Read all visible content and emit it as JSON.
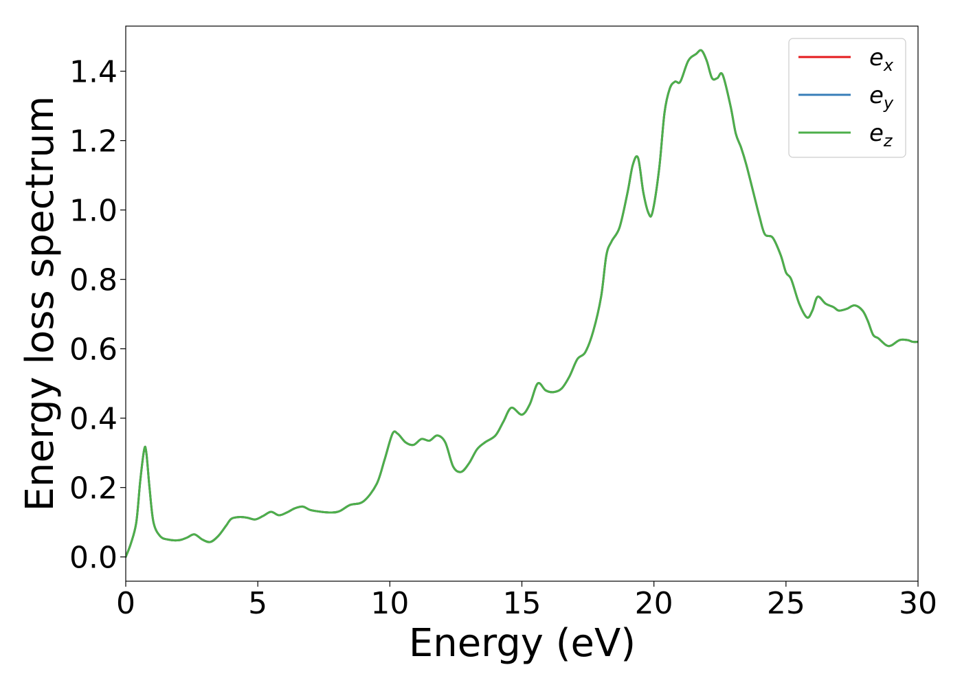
{
  "chart_data": {
    "type": "line",
    "xlabel": "Energy (eV)",
    "ylabel": "Energy loss spectrum",
    "xlim": [
      0,
      30
    ],
    "ylim": [
      -0.07,
      1.53
    ],
    "xticks": [
      0,
      5,
      10,
      15,
      20,
      25,
      30
    ],
    "xtick_labels": [
      "0",
      "5",
      "10",
      "15",
      "20",
      "25",
      "30"
    ],
    "yticks": [
      0.0,
      0.2,
      0.4,
      0.6,
      0.8,
      1.0,
      1.2,
      1.4
    ],
    "ytick_labels": [
      "0.0",
      "0.2",
      "0.4",
      "0.6",
      "0.8",
      "1.0",
      "1.2",
      "1.4"
    ],
    "grid": false,
    "legend_position": "top-right",
    "x": [
      0,
      0.2,
      0.4,
      0.55,
      0.7,
      0.78,
      0.9,
      1.05,
      1.3,
      1.6,
      2.0,
      2.3,
      2.6,
      2.9,
      3.2,
      3.5,
      3.8,
      4.0,
      4.3,
      4.6,
      4.9,
      5.2,
      5.5,
      5.8,
      6.1,
      6.4,
      6.7,
      7.0,
      7.4,
      7.8,
      8.1,
      8.5,
      9.0,
      9.5,
      9.8,
      10.1,
      10.3,
      10.6,
      10.9,
      11.2,
      11.5,
      11.8,
      12.1,
      12.4,
      12.7,
      13.0,
      13.3,
      13.6,
      14.0,
      14.3,
      14.6,
      15.0,
      15.3,
      15.6,
      15.9,
      16.2,
      16.5,
      16.8,
      17.1,
      17.4,
      17.7,
      18.0,
      18.2,
      18.4,
      18.7,
      19.0,
      19.2,
      19.4,
      19.6,
      19.8,
      19.95,
      20.2,
      20.4,
      20.6,
      20.8,
      21.0,
      21.3,
      21.6,
      21.8,
      22.0,
      22.2,
      22.4,
      22.6,
      22.9,
      23.1,
      23.3,
      23.5,
      23.8,
      24.0,
      24.2,
      24.5,
      24.8,
      25.0,
      25.2,
      25.5,
      25.8,
      26.0,
      26.2,
      26.5,
      26.8,
      27.0,
      27.3,
      27.6,
      27.9,
      28.1,
      28.3,
      28.5,
      28.8,
      29.0,
      29.3,
      29.6,
      29.8,
      30.0
    ],
    "series": [
      {
        "name": "e_x",
        "label_base": "e",
        "label_sub": "x",
        "color": "#e41a1c"
      },
      {
        "name": "e_y",
        "label_base": "e",
        "label_sub": "y",
        "color": "#377eb8"
      },
      {
        "name": "e_z",
        "label_base": "e",
        "label_sub": "z",
        "color": "#4daf4a"
      }
    ],
    "values": [
      0.0,
      0.04,
      0.1,
      0.22,
      0.31,
      0.3,
      0.2,
      0.1,
      0.06,
      0.05,
      0.048,
      0.055,
      0.065,
      0.05,
      0.043,
      0.06,
      0.09,
      0.11,
      0.115,
      0.113,
      0.108,
      0.118,
      0.13,
      0.12,
      0.128,
      0.14,
      0.145,
      0.135,
      0.13,
      0.128,
      0.132,
      0.15,
      0.16,
      0.21,
      0.28,
      0.355,
      0.355,
      0.33,
      0.323,
      0.34,
      0.335,
      0.35,
      0.33,
      0.26,
      0.245,
      0.27,
      0.31,
      0.33,
      0.35,
      0.39,
      0.43,
      0.41,
      0.44,
      0.5,
      0.48,
      0.475,
      0.485,
      0.52,
      0.57,
      0.59,
      0.65,
      0.75,
      0.87,
      0.91,
      0.95,
      1.05,
      1.13,
      1.15,
      1.05,
      0.99,
      0.995,
      1.12,
      1.28,
      1.35,
      1.37,
      1.37,
      1.43,
      1.45,
      1.46,
      1.43,
      1.38,
      1.38,
      1.39,
      1.3,
      1.22,
      1.18,
      1.13,
      1.04,
      0.98,
      0.93,
      0.92,
      0.87,
      0.82,
      0.8,
      0.73,
      0.69,
      0.71,
      0.75,
      0.73,
      0.72,
      0.71,
      0.715,
      0.725,
      0.71,
      0.68,
      0.64,
      0.63,
      0.61,
      0.61,
      0.625,
      0.625,
      0.62,
      0.62
    ]
  }
}
